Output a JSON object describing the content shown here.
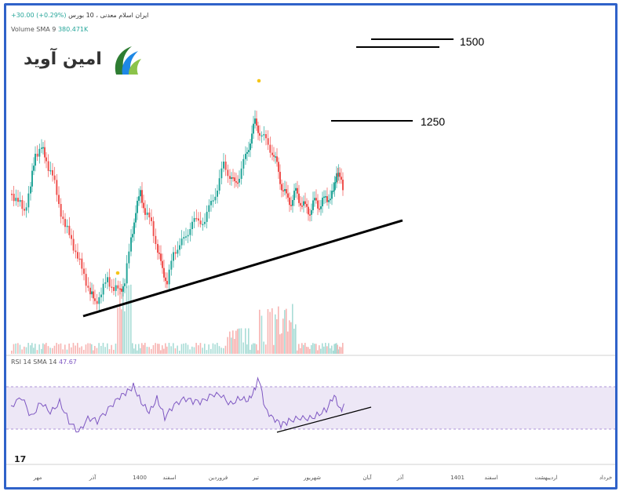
{
  "header": {
    "symbol": "ایران اسلام معدنی ، 10 بورس",
    "change": "+30.00 (+0.29%)"
  },
  "volume_label": {
    "name": "Volume SMA 9",
    "value": "380.471K"
  },
  "rsi_label": {
    "name": "RSI 14 SMA 14",
    "value": "47.67"
  },
  "logo_text": "امین آوید",
  "tv_logo": "17",
  "colors": {
    "up": "#26a69a",
    "down": "#ef5350",
    "rsi_line": "#7e57c2",
    "rsi_band": "#ede7f6",
    "frame": "#2f62c9",
    "marker": "#f5c518"
  },
  "chart_data": {
    "type": "candlestick",
    "x_tick_labels": [
      "مهر",
      "آذر",
      "1400",
      "اسفند",
      "فروردین",
      "تیر",
      "شهریور",
      "آبان",
      "آذر",
      "1401",
      "اسفند",
      "اردیبهشت",
      "خرداد"
    ],
    "level_labels": [
      "1500",
      "1250"
    ],
    "rsi": {
      "upper": 70,
      "lower": 30,
      "current": 47.67
    },
    "annotations": [
      "resistance lines at 1500 and 1250",
      "rising trendline on price",
      "rising trendline on RSI"
    ]
  }
}
